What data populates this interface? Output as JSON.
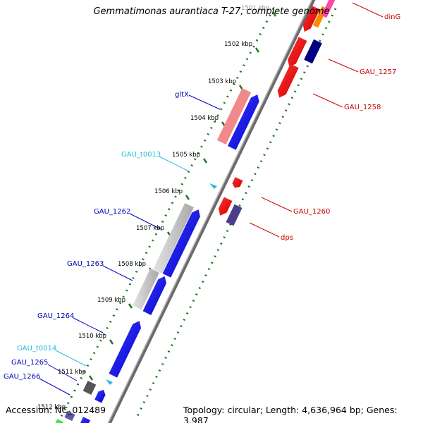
{
  "title": "Gemmatimonas aurantiaca T-27, complete genome",
  "accession": "Accession: NC_012489",
  "summary": "Topology: circular; Length: 4,636,964 bp; Genes: 3,987",
  "ticks": [
    "1501 kbp",
    "1502 kbp",
    "1503 kbp",
    "1504 kbp",
    "1505 kbp",
    "1506 kbp",
    "1507 kbp",
    "1508 kbp",
    "1509 kbp",
    "1510 kbp",
    "1511 kbp",
    "1512 kbp"
  ],
  "labels_left": [
    {
      "text": "gltX",
      "type": "cds"
    },
    {
      "text": "GAU_t0013",
      "type": "trna"
    },
    {
      "text": "GAU_1262",
      "type": "cds"
    },
    {
      "text": "GAU_1263",
      "type": "cds"
    },
    {
      "text": "GAU_1264",
      "type": "cds"
    },
    {
      "text": "GAU_t0014",
      "type": "trna"
    },
    {
      "text": "GAU_1265",
      "type": "cds"
    },
    {
      "text": "GAU_1266",
      "type": "cds"
    }
  ],
  "labels_right": [
    {
      "text": "dinG",
      "type": "cds"
    },
    {
      "text": "GAU_1257",
      "type": "cds"
    },
    {
      "text": "GAU_1258",
      "type": "cds"
    },
    {
      "text": "GAU_1260",
      "type": "cds"
    },
    {
      "text": "dps",
      "type": "cds"
    }
  ],
  "colors": {
    "forward_cds": "#0000ee",
    "reverse_cds": "#ee0000",
    "trna": "#22bbdd",
    "left_label": "#0000bb",
    "right_label": "#cc0000",
    "trna_label": "#22bbdd",
    "tick": "#227722",
    "backbone": "#888888"
  }
}
